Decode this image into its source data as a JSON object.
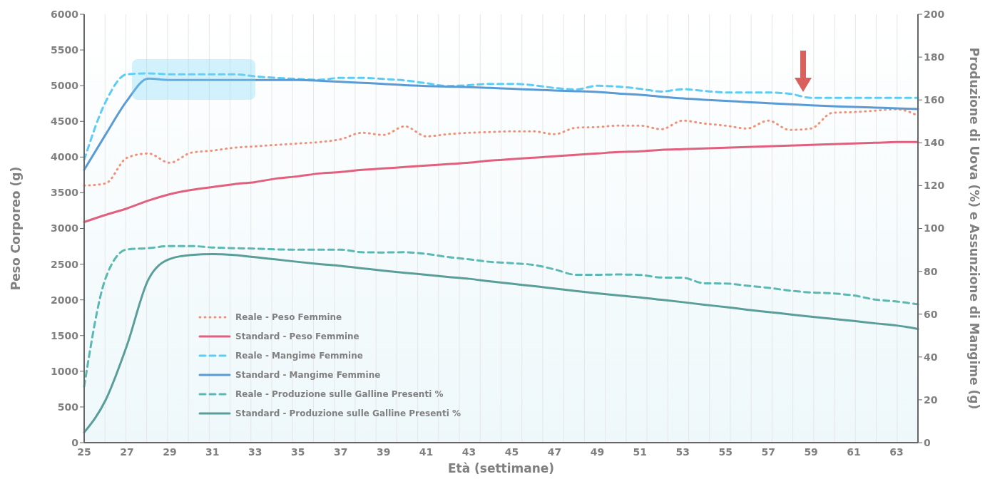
{
  "chart_data": {
    "type": "line",
    "xlabel": "Età (settimane)",
    "ylabel": "Peso Corporeo (g)",
    "y2label": "Produzione di Uova (%) e Assunzione di Mangime (g)",
    "categories": [
      "25",
      null,
      "27",
      null,
      "29",
      null,
      "31",
      null,
      "33",
      null,
      "35",
      null,
      "37",
      null,
      "39",
      null,
      "41",
      null,
      "43",
      null,
      "45",
      null,
      "47",
      null,
      "49",
      null,
      "51",
      null,
      "53",
      null,
      "55",
      null,
      "57",
      null,
      "59",
      null,
      "61",
      null,
      "63",
      null
    ],
    "ylim": [
      0,
      6000
    ],
    "yticks": [
      0,
      500,
      1000,
      1500,
      2000,
      2500,
      3000,
      3500,
      4000,
      4500,
      5000,
      5500,
      6000
    ],
    "y2lim": [
      0,
      200
    ],
    "y2ticks": [
      0,
      20,
      40,
      60,
      80,
      100,
      120,
      140,
      160,
      180,
      200
    ],
    "grid": "x",
    "legend": "bottom left",
    "marker": "none",
    "series": [
      {
        "name": "Reale - Peso Femmine",
        "color": "#f0927a",
        "line_style": "dotted",
        "values": [
          3600,
          3630,
          3990,
          4050,
          3920,
          4060,
          4090,
          4130,
          4150,
          4170,
          4190,
          4210,
          4250,
          4340,
          4310,
          4430,
          4290,
          4320,
          4340,
          4350,
          4360,
          4360,
          4320,
          4410,
          4420,
          4440,
          4440,
          4390,
          4510,
          4470,
          4440,
          4400,
          4510,
          4380,
          4400,
          4620,
          4630,
          4650,
          4670,
          4580
        ]
      },
      {
        "name": "Standard - Peso Femmine",
        "color": "#e0607e",
        "line_style": "solid",
        "values": [
          3090,
          3190,
          3280,
          3390,
          3480,
          3540,
          3580,
          3620,
          3650,
          3700,
          3730,
          3770,
          3790,
          3820,
          3840,
          3860,
          3880,
          3900,
          3920,
          3950,
          3970,
          3990,
          4010,
          4030,
          4050,
          4070,
          4080,
          4100,
          4110,
          4120,
          4130,
          4140,
          4150,
          4160,
          4170,
          4180,
          4190,
          4200,
          4210,
          4210
        ]
      },
      {
        "name": "Reale - Mangime Femmine",
        "color": "#5bcdf5",
        "line_style": "dashed",
        "axis": "y2",
        "values": [
          132,
          159,
          172,
          172.4,
          172,
          172,
          172,
          172,
          171,
          170.3,
          169.8,
          169.4,
          170.3,
          170.3,
          169.8,
          169.1,
          167.8,
          166.5,
          166.9,
          167.5,
          167.5,
          166.9,
          165.6,
          164.9,
          166.6,
          166.2,
          165.2,
          163.9,
          165,
          164.2,
          163.5,
          163.5,
          163.5,
          162.9,
          161,
          161,
          161,
          161,
          161,
          161
        ]
      },
      {
        "name": "Standard - Mangime Femmine",
        "color": "#5b9bd5",
        "line_style": "solid",
        "axis": "y2",
        "values": [
          127.4,
          143.8,
          159.6,
          170,
          169.3,
          169.3,
          169.3,
          169.3,
          169.3,
          169.3,
          169.3,
          169,
          168.5,
          168,
          167.5,
          166.9,
          166.5,
          166.2,
          166,
          165.6,
          165.2,
          164.8,
          164.4,
          164.1,
          163.7,
          163,
          162.4,
          161.5,
          160.7,
          160.1,
          159.6,
          159,
          158.5,
          158,
          157.5,
          157.1,
          156.7,
          156.4,
          156.1,
          155.7
        ]
      },
      {
        "name": "Reale - Produzione sulle Galline Presenti %",
        "color": "#5cb8b2",
        "line_style": "dashed",
        "axis": "y2",
        "values": [
          26.2,
          76.7,
          90.2,
          90.8,
          91.8,
          91.8,
          91.1,
          90.8,
          90.6,
          90.2,
          90.1,
          90.1,
          90.1,
          88.9,
          88.8,
          88.9,
          88.1,
          86.7,
          85.6,
          84.4,
          83.8,
          83,
          80.9,
          78.4,
          78.4,
          78.5,
          78.3,
          77.1,
          77,
          74.4,
          74.3,
          73.3,
          72.3,
          71,
          70.1,
          69.7,
          68.7,
          66.8,
          65.9,
          64.6
        ]
      },
      {
        "name": "Standard - Produzione sulle Galline Presenti %",
        "color": "#5a9e9a",
        "line_style": "solid",
        "axis": "y2",
        "values": [
          4.8,
          19.8,
          45.4,
          76.1,
          85.7,
          87.6,
          88,
          87.6,
          86.6,
          85.5,
          84.4,
          83.4,
          82.5,
          81.4,
          80.3,
          79.3,
          78.4,
          77.4,
          76.5,
          75.3,
          74.2,
          73.1,
          72,
          70.8,
          69.7,
          68.7,
          67.8,
          66.7,
          65.6,
          64.4,
          63.3,
          62.1,
          61,
          59.9,
          58.8,
          57.8,
          56.8,
          55.7,
          54.7,
          53.1
        ]
      }
    ]
  }
}
